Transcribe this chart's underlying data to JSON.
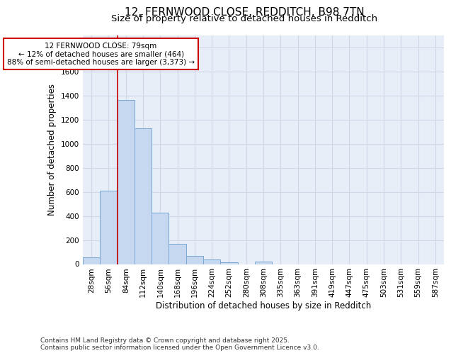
{
  "title_line1": "12, FERNWOOD CLOSE, REDDITCH, B98 7TN",
  "title_line2": "Size of property relative to detached houses in Redditch",
  "xlabel": "Distribution of detached houses by size in Redditch",
  "ylabel": "Number of detached properties",
  "bin_labels": [
    "28sqm",
    "56sqm",
    "84sqm",
    "112sqm",
    "140sqm",
    "168sqm",
    "196sqm",
    "224sqm",
    "252sqm",
    "280sqm",
    "308sqm",
    "335sqm",
    "363sqm",
    "391sqm",
    "419sqm",
    "447sqm",
    "475sqm",
    "503sqm",
    "531sqm",
    "559sqm",
    "587sqm"
  ],
  "bar_values": [
    55,
    610,
    1365,
    1130,
    430,
    170,
    65,
    37,
    15,
    0,
    20,
    0,
    0,
    0,
    0,
    0,
    0,
    0,
    0,
    0,
    0
  ],
  "bar_color": "#c5d8f0",
  "bar_edge_color": "#7aa8d4",
  "annotation_text": "12 FERNWOOD CLOSE: 79sqm\n← 12% of detached houses are smaller (464)\n88% of semi-detached houses are larger (3,373) →",
  "annotation_box_color": "#cc0000",
  "vline_color": "#cc0000",
  "vline_x_index": 2,
  "ylim": [
    0,
    1900
  ],
  "yticks": [
    0,
    200,
    400,
    600,
    800,
    1000,
    1200,
    1400,
    1600,
    1800
  ],
  "grid_color": "#d0d8e8",
  "bg_color": "#e8eef8",
  "footnote": "Contains HM Land Registry data © Crown copyright and database right 2025.\nContains public sector information licensed under the Open Government Licence v3.0.",
  "title_fontsize": 11,
  "subtitle_fontsize": 9.5,
  "axis_label_fontsize": 8.5,
  "tick_fontsize": 7.5,
  "annotation_fontsize": 7.5,
  "footnote_fontsize": 6.5
}
